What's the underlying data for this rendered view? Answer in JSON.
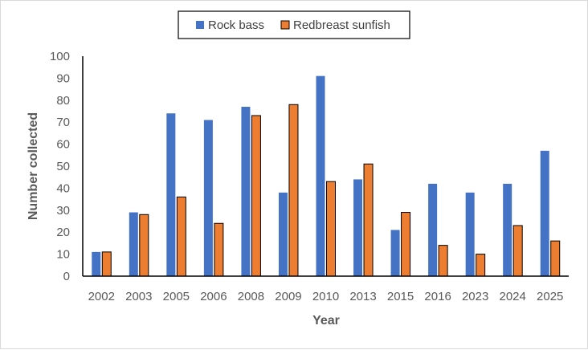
{
  "chart_data": {
    "type": "bar",
    "title": "",
    "xlabel": "Year",
    "ylabel": "Number collected",
    "categories": [
      "2002",
      "2003",
      "2005",
      "2006",
      "2008",
      "2009",
      "2010",
      "2013",
      "2015",
      "2016",
      "2023",
      "2024",
      "2025"
    ],
    "series": [
      {
        "name": "Rock bass",
        "color": "#4472c4",
        "values": [
          11,
          29,
          74,
          71,
          77,
          38,
          91,
          44,
          21,
          42,
          38,
          42,
          57
        ]
      },
      {
        "name": "Redbreast sunfish",
        "color": "#ed7d31",
        "values": [
          11,
          28,
          36,
          24,
          73,
          78,
          43,
          51,
          29,
          14,
          10,
          23,
          16
        ]
      }
    ],
    "ylim": [
      0,
      100
    ],
    "yticks": [
      0,
      10,
      20,
      30,
      40,
      50,
      60,
      70,
      80,
      90,
      100
    ],
    "grid": false,
    "legend_position": "top",
    "legend_box": true
  }
}
